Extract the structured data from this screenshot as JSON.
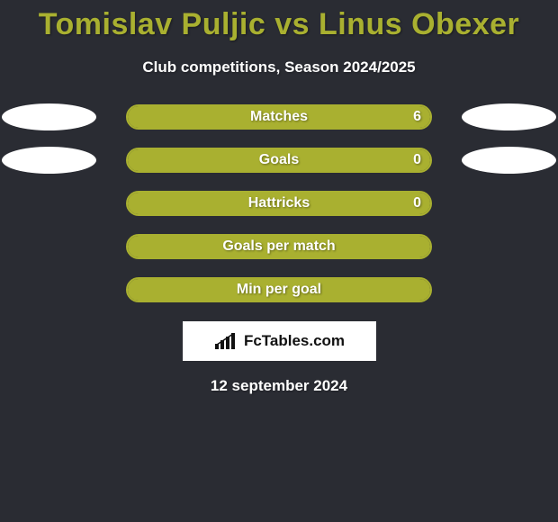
{
  "title": "Tomislav Puljic vs Linus Obexer",
  "subtitle": "Club competitions, Season 2024/2025",
  "date": "12 september 2024",
  "colors": {
    "background": "#2a2c33",
    "accent": "#a9b030",
    "oval": "#ffffff",
    "text": "#ffffff",
    "logo_bg": "#ffffff",
    "logo_fg": "#111111"
  },
  "stats": [
    {
      "label": "Matches",
      "value_right": "6",
      "fill_left_pct": 0,
      "fill_right_pct": 100,
      "show_left_oval": true,
      "show_right_oval": true
    },
    {
      "label": "Goals",
      "value_right": "0",
      "fill_left_pct": 0,
      "fill_right_pct": 100,
      "show_left_oval": true,
      "show_right_oval": true
    },
    {
      "label": "Hattricks",
      "value_right": "0",
      "fill_left_pct": 0,
      "fill_right_pct": 100,
      "show_left_oval": false,
      "show_right_oval": false
    },
    {
      "label": "Goals per match",
      "value_right": "",
      "fill_left_pct": 0,
      "fill_right_pct": 100,
      "show_left_oval": false,
      "show_right_oval": false
    },
    {
      "label": "Min per goal",
      "value_right": "",
      "fill_left_pct": 0,
      "fill_right_pct": 100,
      "show_left_oval": false,
      "show_right_oval": false
    }
  ],
  "logo": {
    "brand": "FcTables",
    "suffix": ".com"
  }
}
